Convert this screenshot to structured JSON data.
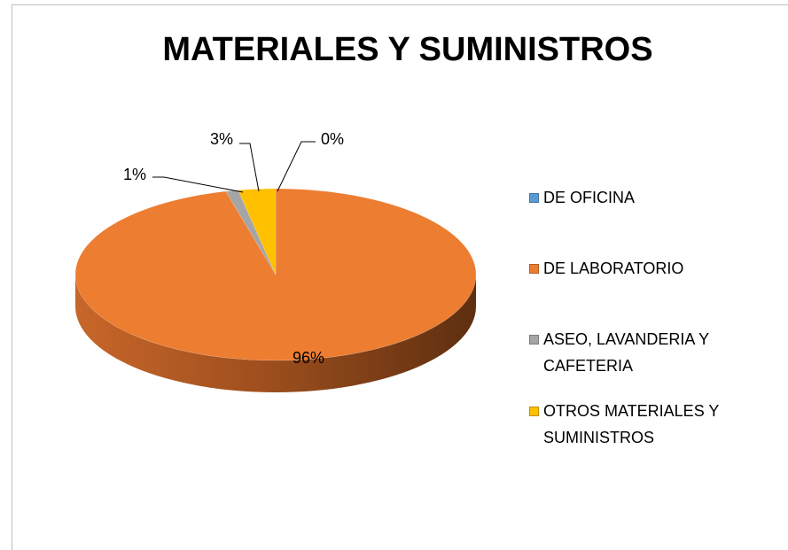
{
  "chart_data": {
    "type": "pie",
    "title": "MATERIALES Y SUMINISTROS",
    "categories": [
      "DE OFICINA",
      "DE LABORATORIO",
      "ASEO, LAVANDERIA Y CAFETERIA",
      "OTROS MATERIALES Y SUMINISTROS"
    ],
    "values": [
      0,
      96,
      1,
      3
    ],
    "value_labels": [
      "0%",
      "96%",
      "1%",
      "3%"
    ],
    "colors": [
      "#5b9bd5",
      "#ed7d31",
      "#a5a5a5",
      "#ffc000"
    ],
    "legend": "right"
  }
}
